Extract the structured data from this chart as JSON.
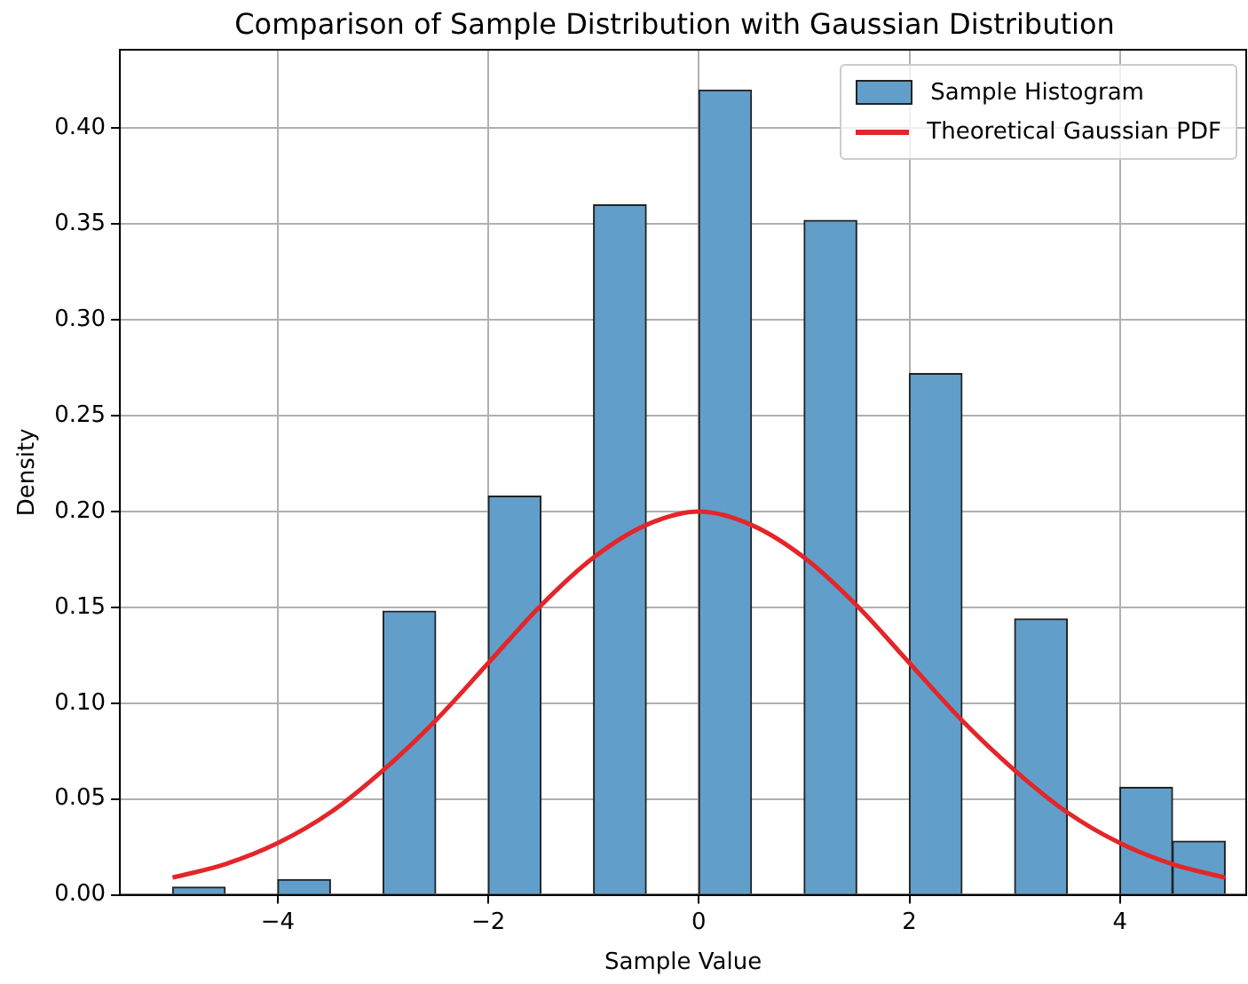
{
  "chart_data": {
    "type": "histogram",
    "title": "Comparison of Sample Distribution with Gaussian Distribution",
    "xlabel": "Sample Value",
    "ylabel": "Density",
    "series": [
      {
        "name": "Sample Histogram",
        "color": "#619fca",
        "bins": [
          -5,
          -4.5,
          -4,
          -3.5,
          -3,
          -2.5,
          -2,
          -1.5,
          -1,
          -0.5,
          0,
          0.5,
          1,
          1.5,
          2,
          2.5,
          3,
          3.5,
          4,
          4.5,
          5
        ],
        "values": [
          0.004,
          0,
          0.008,
          0,
          0.148,
          0,
          0.208,
          0,
          0.36,
          0,
          0.42,
          0,
          0.352,
          0,
          0.272,
          0,
          0.144,
          0,
          0.056,
          0.028
        ]
      },
      {
        "name": "Theoretical Gaussian PDF",
        "type": "line",
        "color": "#e3262a",
        "x": [
          -5,
          -4.5,
          -4,
          -3.5,
          -3,
          -2.5,
          -2,
          -1.5,
          -1,
          -0.5,
          0,
          0.5,
          1,
          1.5,
          2,
          2.5,
          3,
          3.5,
          4,
          4.5,
          5
        ],
        "values": [
          0.009,
          0.016,
          0.027,
          0.043,
          0.065,
          0.091,
          0.121,
          0.151,
          0.176,
          0.193,
          0.2,
          0.193,
          0.176,
          0.151,
          0.121,
          0.091,
          0.065,
          0.043,
          0.027,
          0.016,
          0.009
        ]
      }
    ],
    "xlim": [
      -5.5,
      5.2
    ],
    "xticks": [
      {
        "value": -4,
        "label": "−4"
      },
      {
        "value": -2,
        "label": "−2"
      },
      0,
      2,
      4
    ],
    "ylim": [
      0,
      0.441
    ],
    "yticks": [
      {
        "value": 0,
        "label": "0.00"
      },
      {
        "value": 0.05,
        "label": "0.05"
      },
      {
        "value": 0.1,
        "label": "0.10"
      },
      {
        "value": 0.15,
        "label": "0.15"
      },
      {
        "value": 0.2,
        "label": "0.20"
      },
      {
        "value": 0.25,
        "label": "0.25"
      },
      {
        "value": 0.3,
        "label": "0.30"
      },
      {
        "value": 0.35,
        "label": "0.35"
      },
      {
        "value": 0.4,
        "label": "0.40"
      }
    ],
    "grid": true,
    "legend": "top right",
    "line_style": "solid",
    "marker": "none"
  }
}
